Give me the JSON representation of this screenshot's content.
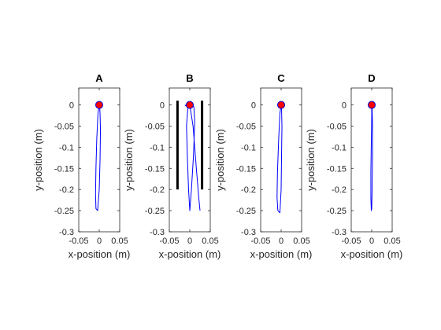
{
  "colors": {
    "trajectory": "#0000ff",
    "endpoint_fill": "#ff0000",
    "endpoint_edge": "#0000cc",
    "barrier": "#000000",
    "axes": "#262626"
  },
  "chart_data": [
    {
      "type": "line",
      "title": "A",
      "xlabel": "x-position (m)",
      "ylabel": "y-position (m)",
      "xlim": [
        -0.05,
        0.05
      ],
      "ylim": [
        -0.3,
        0.04
      ],
      "xticks": [
        -0.05,
        0,
        0.05
      ],
      "xtick_labels": [
        "-0.05",
        "0",
        "0.05"
      ],
      "yticks": [
        0,
        -0.05,
        -0.1,
        -0.15,
        -0.2,
        -0.25,
        -0.3
      ],
      "ytick_labels": [
        "0",
        "-0.05",
        "-0.1",
        "-0.15",
        "-0.2",
        "-0.25",
        "-0.3"
      ],
      "grid": false,
      "series": [
        {
          "x": [
            0,
            -0.003,
            -0.006,
            -0.008,
            -0.009,
            -0.008,
            -0.004,
            0.0,
            0.002,
            0.003,
            0.002,
            0.001,
            0
          ],
          "y": [
            0,
            -0.02,
            -0.08,
            -0.15,
            -0.21,
            -0.245,
            -0.25,
            -0.2,
            -0.13,
            -0.06,
            -0.02,
            -0.005,
            0
          ]
        }
      ],
      "endpoint": {
        "x": 0,
        "y": 0
      },
      "barriers": []
    },
    {
      "type": "line",
      "title": "B",
      "xlabel": "x-position (m)",
      "ylabel": "y-position (m)",
      "xlim": [
        -0.05,
        0.05
      ],
      "ylim": [
        -0.3,
        0.04
      ],
      "xticks": [
        -0.05,
        0,
        0.05
      ],
      "xtick_labels": [
        "-0.05",
        "0",
        "0.05"
      ],
      "yticks": [
        0,
        -0.05,
        -0.1,
        -0.15,
        -0.2,
        -0.25,
        -0.3
      ],
      "ytick_labels": [
        "0",
        "-0.05",
        "-0.1",
        "-0.15",
        "-0.2",
        "-0.25",
        "-0.3"
      ],
      "grid": false,
      "series": [
        {
          "x": [
            0,
            -0.005,
            -0.008,
            -0.006,
            -0.003,
            0,
            0.004,
            0.009,
            0.012,
            0.01,
            0.006,
            0.002,
            0
          ],
          "y": [
            0,
            -0.01,
            -0.05,
            -0.12,
            -0.2,
            -0.25,
            -0.2,
            -0.12,
            -0.04,
            -0.005,
            0.002,
            0.002,
            0
          ]
        },
        {
          "x": [
            0,
            0.008,
            0.016,
            0.022,
            0.025
          ],
          "y": [
            0,
            -0.05,
            -0.15,
            -0.22,
            -0.25
          ]
        },
        {
          "x": [
            0,
            -0.01,
            -0.012
          ],
          "y": [
            0,
            -0.002,
            0.0
          ]
        }
      ],
      "endpoint": {
        "x": 0,
        "y": 0
      },
      "barriers": [
        {
          "x": -0.03,
          "y": [
            0.01,
            -0.2
          ]
        },
        {
          "x": 0.03,
          "y": [
            0.01,
            -0.2
          ]
        }
      ]
    },
    {
      "type": "line",
      "title": "C",
      "xlabel": "x-position (m)",
      "ylabel": "y-position (m)",
      "xlim": [
        -0.05,
        0.05
      ],
      "ylim": [
        -0.3,
        0.04
      ],
      "xticks": [
        -0.05,
        0,
        0.05
      ],
      "xtick_labels": [
        "-0.05",
        "0",
        "0.05"
      ],
      "yticks": [
        0,
        -0.05,
        -0.1,
        -0.15,
        -0.2,
        -0.25,
        -0.3
      ],
      "ytick_labels": [
        "0",
        "-0.05",
        "-0.1",
        "-0.15",
        "-0.2",
        "-0.25",
        "-0.3"
      ],
      "grid": false,
      "series": [
        {
          "x": [
            0,
            -0.003,
            -0.006,
            -0.009,
            -0.01,
            -0.008,
            -0.003,
            0.0,
            0.001,
            0.002,
            0.001,
            0
          ],
          "y": [
            0,
            -0.02,
            -0.08,
            -0.16,
            -0.22,
            -0.25,
            -0.255,
            -0.2,
            -0.12,
            -0.05,
            -0.01,
            0
          ]
        }
      ],
      "endpoint": {
        "x": 0,
        "y": 0
      },
      "barriers": []
    },
    {
      "type": "line",
      "title": "D",
      "xlabel": "x-position (m)",
      "ylabel": "y-position (m)",
      "xlim": [
        -0.05,
        0.05
      ],
      "ylim": [
        -0.3,
        0.04
      ],
      "xticks": [
        -0.05,
        0,
        0.05
      ],
      "xtick_labels": [
        "-0.05",
        "0",
        "0.05"
      ],
      "yticks": [
        0,
        -0.05,
        -0.1,
        -0.15,
        -0.2,
        -0.25,
        -0.3
      ],
      "ytick_labels": [
        "0",
        "-0.05",
        "-0.1",
        "-0.15",
        "-0.2",
        "-0.25",
        "-0.3"
      ],
      "grid": false,
      "series": [
        {
          "x": [
            0,
            0.0,
            -0.001,
            -0.002,
            -0.002,
            -0.001,
            0.0,
            0.001,
            0.002,
            0.002,
            0.001,
            0
          ],
          "y": [
            0,
            -0.03,
            -0.09,
            -0.16,
            -0.22,
            -0.25,
            -0.245,
            -0.2,
            -0.12,
            -0.05,
            -0.01,
            0
          ]
        }
      ],
      "endpoint": {
        "x": 0,
        "y": 0
      },
      "barriers": []
    }
  ]
}
